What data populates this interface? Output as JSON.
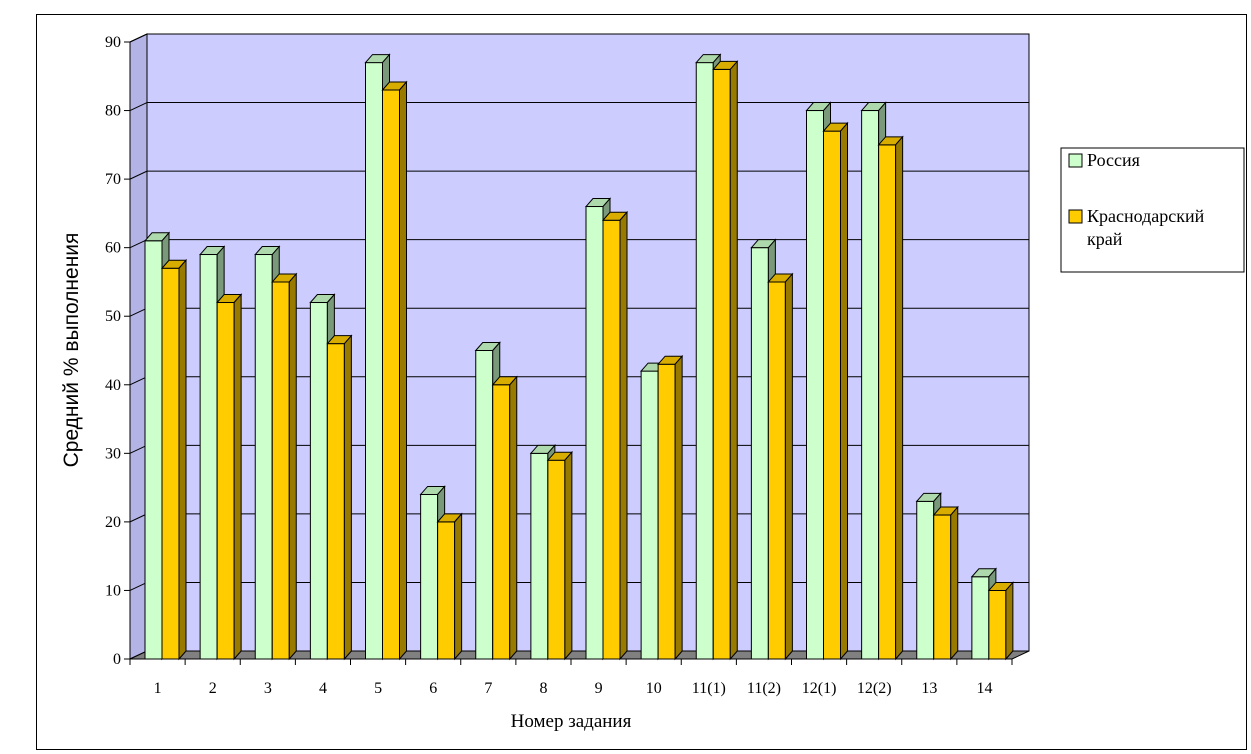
{
  "chart_data": {
    "type": "bar",
    "title": "",
    "xlabel": "Номер задания",
    "ylabel": "Средний % выполнения",
    "ylim": [
      0,
      90
    ],
    "yticks": [
      0,
      10,
      20,
      30,
      40,
      50,
      60,
      70,
      80,
      90
    ],
    "grid": true,
    "legend_position": "right",
    "categories": [
      "1",
      "2",
      "3",
      "4",
      "5",
      "6",
      "7",
      "8",
      "9",
      "10",
      "11(1)",
      "11(2)",
      "12(1)",
      "12(2)",
      "13",
      "14"
    ],
    "series": [
      {
        "name": "Россия",
        "color": "#ccffcc",
        "values": [
          61,
          59,
          59,
          52,
          87,
          24,
          45,
          30,
          66,
          42,
          87,
          60,
          80,
          80,
          23,
          12
        ]
      },
      {
        "name": "Краснодарский край",
        "color": "#ffcc00",
        "values": [
          57,
          52,
          55,
          46,
          83,
          20,
          40,
          29,
          64,
          43,
          86,
          55,
          77,
          75,
          21,
          10
        ]
      }
    ],
    "legend_lines": [
      [
        "Россия"
      ],
      [
        "Краснодарский",
        "край"
      ]
    ],
    "plot_background": "#ccccff"
  }
}
